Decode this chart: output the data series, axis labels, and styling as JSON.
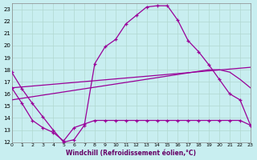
{
  "xlabel": "Windchill (Refroidissement éolien,°C)",
  "bg_color": "#c8eef0",
  "grid_color": "#b0d8d0",
  "line_color": "#990099",
  "xlim": [
    0,
    23
  ],
  "ylim": [
    12,
    23.5
  ],
  "yticks": [
    12,
    13,
    14,
    15,
    16,
    17,
    18,
    19,
    20,
    21,
    22,
    23
  ],
  "xticks": [
    0,
    1,
    2,
    3,
    4,
    5,
    6,
    7,
    8,
    9,
    10,
    11,
    12,
    13,
    14,
    15,
    16,
    17,
    18,
    19,
    20,
    21,
    22,
    23
  ],
  "line1_x": [
    0,
    1,
    2,
    3,
    4,
    5,
    6,
    7,
    8,
    9,
    10,
    11,
    12,
    13,
    14,
    15,
    16,
    17,
    18,
    19,
    20,
    21,
    22,
    23
  ],
  "line1_y": [
    17.8,
    16.4,
    15.2,
    14.1,
    13.0,
    12.0,
    12.2,
    13.4,
    18.5,
    19.9,
    20.5,
    21.8,
    22.5,
    23.2,
    23.3,
    23.3,
    22.1,
    20.4,
    19.5,
    18.4,
    17.2,
    16.0,
    15.5,
    13.4
  ],
  "line2_x": [
    0,
    1,
    2,
    3,
    4,
    5,
    6,
    7,
    8,
    9,
    10,
    11,
    12,
    13,
    14,
    15,
    16,
    17,
    18,
    19,
    20,
    21,
    22,
    23
  ],
  "line2_y": [
    16.5,
    15.2,
    13.8,
    13.2,
    12.8,
    12.1,
    13.2,
    13.5,
    13.8,
    13.8,
    13.8,
    13.8,
    13.8,
    13.8,
    13.8,
    13.8,
    13.8,
    13.8,
    13.8,
    13.8,
    13.8,
    13.8,
    13.8,
    13.4
  ],
  "line3_x": [
    0,
    23
  ],
  "line3_y": [
    16.5,
    18.2
  ],
  "line4_x": [
    0,
    19,
    20,
    21,
    22,
    23
  ],
  "line4_y": [
    15.5,
    18.0,
    18.0,
    17.8,
    17.2,
    16.5
  ]
}
